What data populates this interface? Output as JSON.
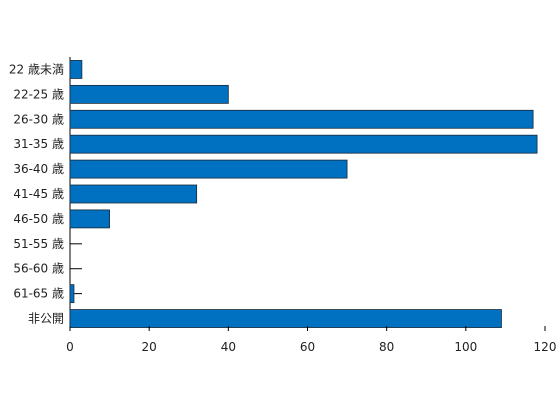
{
  "chart_data": {
    "type": "bar",
    "orientation": "horizontal",
    "title": "",
    "xlabel": "",
    "ylabel": "",
    "categories": [
      "22 歳未満",
      "22-25 歳",
      "26-30 歳",
      "31-35 歳",
      "36-40 歳",
      "41-45 歳",
      "46-50 歳",
      "51-55 歳",
      "56-60 歳",
      "61-65 歳",
      "非公開"
    ],
    "values": [
      3,
      40,
      117,
      118,
      70,
      32,
      10,
      0,
      0,
      1,
      109
    ],
    "xlim": [
      0,
      120
    ],
    "xticks": [
      0,
      20,
      40,
      60,
      80,
      100,
      120
    ],
    "grid": false,
    "legend": "none",
    "bar_color": "#0070C0"
  }
}
